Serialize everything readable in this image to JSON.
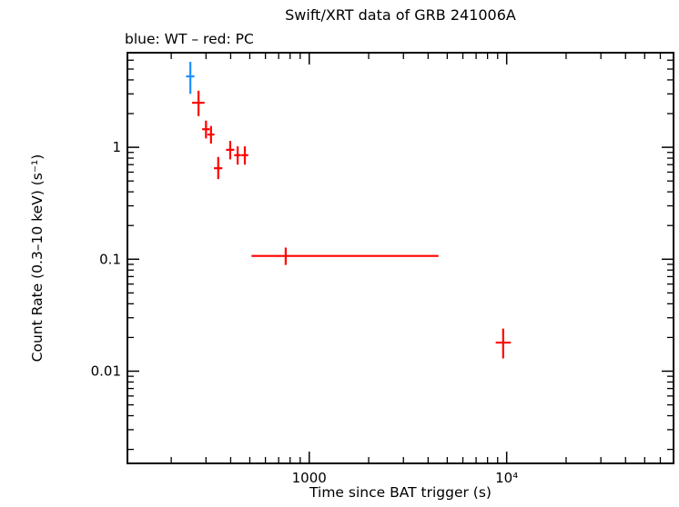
{
  "chart_data": {
    "type": "scatter",
    "title": "Swift/XRT data of GRB 241006A",
    "subtitle": "blue: WT – red: PC",
    "xlabel": "Time since BAT trigger (s)",
    "ylabel": "Count Rate (0.3–10 keV) (s⁻¹)",
    "xscale": "log",
    "yscale": "log",
    "xlim": [
      120,
      70000
    ],
    "ylim": [
      0.0015,
      7
    ],
    "grid": false,
    "frame_color": "#000000",
    "x_ticks": [
      {
        "value": 1000,
        "label": "1000"
      },
      {
        "value": 10000,
        "label": "10⁴"
      }
    ],
    "y_ticks": [
      {
        "value": 1,
        "label": "1"
      },
      {
        "value": 0.1,
        "label": "0.1"
      },
      {
        "value": 0.01,
        "label": "0.01"
      }
    ],
    "legend": [
      {
        "name": "WT",
        "color": "#1e8fff"
      },
      {
        "name": "PC",
        "color": "#ff0000"
      }
    ],
    "series": [
      {
        "name": "WT",
        "color": "#1e8fff",
        "points": [
          {
            "x": 250,
            "xerr_minus": 12,
            "xerr_plus": 12,
            "y": 4.3,
            "yerr_minus": 1.3,
            "yerr_plus": 1.5
          }
        ]
      },
      {
        "name": "PC",
        "color": "#ff0000",
        "points": [
          {
            "x": 275,
            "xerr_minus": 20,
            "xerr_plus": 20,
            "y": 2.5,
            "yerr_minus": 0.6,
            "yerr_plus": 0.7
          },
          {
            "x": 300,
            "xerr_minus": 13,
            "xerr_plus": 13,
            "y": 1.45,
            "yerr_minus": 0.25,
            "yerr_plus": 0.28
          },
          {
            "x": 318,
            "xerr_minus": 13,
            "xerr_plus": 13,
            "y": 1.3,
            "yerr_minus": 0.22,
            "yerr_plus": 0.25
          },
          {
            "x": 346,
            "xerr_minus": 17,
            "xerr_plus": 17,
            "y": 0.65,
            "yerr_minus": 0.13,
            "yerr_plus": 0.17
          },
          {
            "x": 398,
            "xerr_minus": 19,
            "xerr_plus": 19,
            "y": 0.95,
            "yerr_minus": 0.17,
            "yerr_plus": 0.19
          },
          {
            "x": 434,
            "xerr_minus": 17,
            "xerr_plus": 17,
            "y": 0.85,
            "yerr_minus": 0.15,
            "yerr_plus": 0.17
          },
          {
            "x": 472,
            "xerr_minus": 19,
            "xerr_plus": 19,
            "y": 0.85,
            "yerr_minus": 0.15,
            "yerr_plus": 0.17
          },
          {
            "x": 760,
            "xerr_minus": 250,
            "xerr_plus": 3750,
            "y": 0.107,
            "yerr_minus": 0.018,
            "yerr_plus": 0.02
          },
          {
            "x": 9600,
            "xerr_minus": 800,
            "xerr_plus": 900,
            "y": 0.018,
            "yerr_minus": 0.005,
            "yerr_plus": 0.006
          }
        ]
      }
    ]
  }
}
